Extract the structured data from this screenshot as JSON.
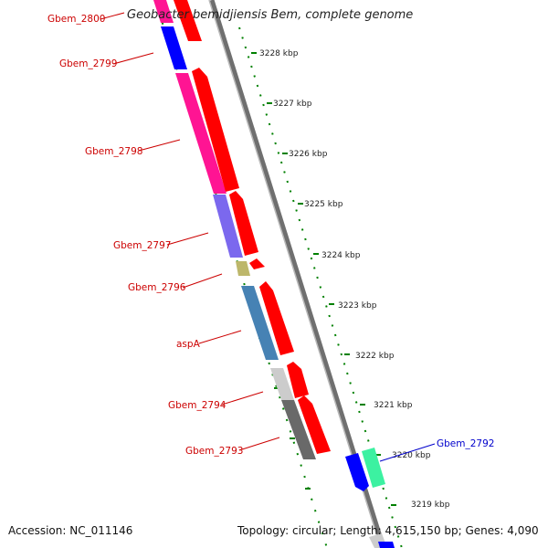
{
  "title": "Geobacter bemidjiensis Bem, complete genome",
  "accession": "Accession: NC_011146",
  "topology": "Topology: circular; Length: 4,615,150 bp; Genes: 4,090",
  "colors": {
    "cds_arrow": "#ff0000",
    "backbone": "#888888",
    "tick": "#008000",
    "label_red": "#cc0000",
    "label_blue": "#0000cc",
    "cog_blue": "#0000ff",
    "cog_magenta": "#ff1493",
    "cog_purple": "#7b68ee",
    "cog_olive": "#bdb76b",
    "cog_steel": "#4682b4",
    "cog_lightgray": "#cccccc",
    "cog_gray": "#696969",
    "cog_seagreen": "#3cf1a1"
  },
  "scale_labels": [
    "3228 kbp",
    "3227 kbp",
    "3226 kbp",
    "3225 kbp",
    "3224 kbp",
    "3223 kbp",
    "3222 kbp",
    "3221 kbp",
    "3220 kbp",
    "3219 kbp"
  ],
  "genes": [
    {
      "label": "Gbem_2800",
      "color": "red",
      "cog": "magenta"
    },
    {
      "label": "Gbem_2799",
      "color": "red",
      "cog": "blue"
    },
    {
      "label": "Gbem_2798",
      "color": "red",
      "cog": "magenta"
    },
    {
      "label": "Gbem_2797",
      "color": "red",
      "cog": "purple"
    },
    {
      "label": "Gbem_2796",
      "color": "red",
      "cog": "olive"
    },
    {
      "label": "aspA",
      "color": "red",
      "cog": "steel"
    },
    {
      "label": "Gbem_2794",
      "color": "red",
      "cog": "lightgray"
    },
    {
      "label": "Gbem_2793",
      "color": "red",
      "cog": "gray"
    },
    {
      "label": "Gbem_2792",
      "color": "blue",
      "cog": "seagreen"
    }
  ]
}
